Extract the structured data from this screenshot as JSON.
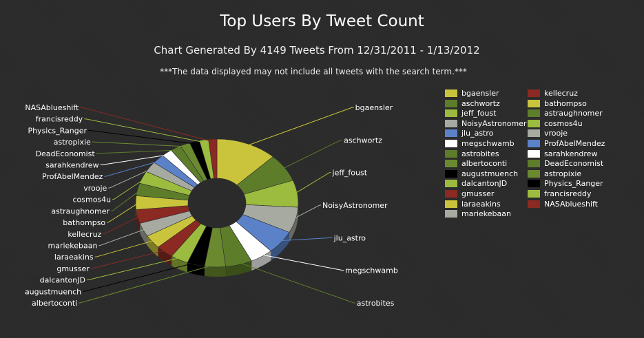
{
  "chart_data": {
    "type": "pie",
    "variant": "3d-donut",
    "title": "Top Users By Tweet Count",
    "subtitle": "Chart Generated By 4149 Tweets From 12/31/2011 - 1/13/2012",
    "note": "***The data displayed may not include all tweets with the search term.***",
    "legend_position": "right",
    "slices": [
      {
        "label": "bgaensler",
        "value": 160,
        "color": "#c9c43b"
      },
      {
        "label": "aschwortz",
        "value": 94,
        "color": "#5d7d2a"
      },
      {
        "label": "jeff_foust",
        "value": 90,
        "color": "#9bbc3e"
      },
      {
        "label": "NoisyAstronomer",
        "value": 86,
        "color": "#a6aaa0"
      },
      {
        "label": "jlu_astro",
        "value": 78,
        "color": "#5b82c9"
      },
      {
        "label": "megschwamb",
        "value": 60,
        "color": "#ffffff"
      },
      {
        "label": "astrobites",
        "value": 70,
        "color": "#5d7d2a"
      },
      {
        "label": "albertoconti",
        "value": 55,
        "color": "#6b8a30"
      },
      {
        "label": "augustmuench",
        "value": 46,
        "color": "#000000"
      },
      {
        "label": "dalcantonJD",
        "value": 46,
        "color": "#9bbc3e"
      },
      {
        "label": "gmusser",
        "value": 46,
        "color": "#8b2a22"
      },
      {
        "label": "laraeakins",
        "value": 46,
        "color": "#c9c43b"
      },
      {
        "label": "mariekebaan",
        "value": 46,
        "color": "#a6aaa0"
      },
      {
        "label": "kellecruz",
        "value": 46,
        "color": "#8b2a22"
      },
      {
        "label": "bathompso",
        "value": 46,
        "color": "#c9c43b"
      },
      {
        "label": "astraughnomer",
        "value": 42,
        "color": "#5d7d2a"
      },
      {
        "label": "cosmos4u",
        "value": 42,
        "color": "#9bbc3e"
      },
      {
        "label": "vrooje",
        "value": 36,
        "color": "#a6aaa0"
      },
      {
        "label": "ProfAbelMendez",
        "value": 32,
        "color": "#5b82c9"
      },
      {
        "label": "sarahkendrew",
        "value": 28,
        "color": "#ffffff"
      },
      {
        "label": "DeadEconomist",
        "value": 28,
        "color": "#5d7d2a"
      },
      {
        "label": "astropixie",
        "value": 26,
        "color": "#6b8a30"
      },
      {
        "label": "Physics_Ranger",
        "value": 26,
        "color": "#000000"
      },
      {
        "label": "francisreddy",
        "value": 24,
        "color": "#9bbc3e"
      },
      {
        "label": "NASAblueshift",
        "value": 22,
        "color": "#8b2a22"
      }
    ]
  }
}
